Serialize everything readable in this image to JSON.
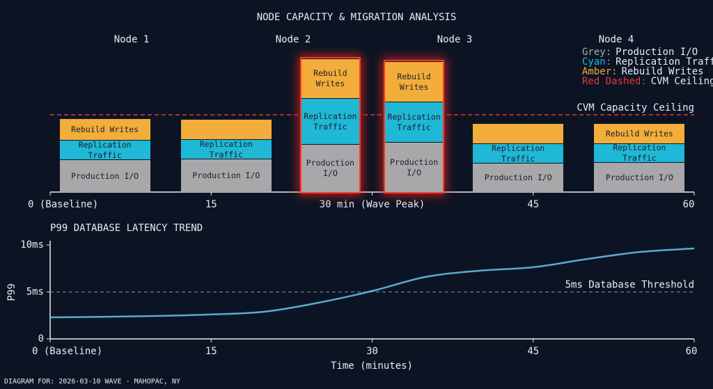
{
  "chart_data": [
    {
      "type": "bar",
      "stacked": true,
      "title": "NODE CAPACITY & MIGRATION ANALYSIS",
      "nodes": [
        "Node 1",
        "Node 2",
        "Node 3",
        "Node 4"
      ],
      "x": [
        5.1,
        16.4,
        26.1,
        33.9,
        43.6,
        54.9
      ],
      "xlim": [
        0,
        60
      ],
      "xticks": [
        {
          "value": 0,
          "label": "0 (Baseline)"
        },
        15,
        {
          "value": 30,
          "label": "30 min (Wave Peak)"
        },
        45,
        60
      ],
      "ylim": [
        0,
        200
      ],
      "highlight": [
        false,
        false,
        true,
        true,
        false,
        false
      ],
      "series": [
        {
          "name": "Production I/O",
          "legend_prefix": "Grey:",
          "color": "#a8a8aa",
          "values": [
            47,
            48,
            69,
            72,
            42,
            43
          ],
          "labels": [
            "Production I/O",
            "Production I/O",
            "Production I/O",
            "Production I/O",
            "Production I/O",
            "Production I/O"
          ]
        },
        {
          "name": "Replication Traffic",
          "legend_prefix": "Cyan:",
          "color": "#1fb8d6",
          "values": [
            28,
            28,
            66,
            58,
            28,
            27
          ],
          "labels": [
            "Replication Traffic",
            "Replication Traffic",
            "Replication Traffic",
            "Replication Traffic",
            "Replication Traffic",
            "Replication Traffic"
          ]
        },
        {
          "name": "Rebuild Writes",
          "legend_prefix": "Amber:",
          "color": "#f2ad3a",
          "values": [
            31,
            29,
            57,
            58,
            29,
            29
          ],
          "labels": [
            "Rebuild Writes",
            null,
            "Rebuild Writes",
            "Rebuild Writes",
            null,
            "Rebuild Writes"
          ]
        }
      ],
      "ceiling": {
        "value": 111,
        "label": "CVM Capacity Ceiling",
        "legend_prefix": "Red Dashed:",
        "legend_label": "CVM Ceiling",
        "color": "#e0383a"
      }
    },
    {
      "type": "line",
      "title": "P99 DATABASE LATENCY TREND",
      "x_label": "Time (minutes)",
      "y_label": "P99",
      "x": [
        0,
        5,
        10,
        15,
        20,
        25,
        30,
        35,
        40,
        45,
        50,
        55,
        60
      ],
      "values": [
        2.3,
        2.35,
        2.44,
        2.6,
        2.9,
        3.85,
        5.1,
        6.6,
        7.26,
        7.63,
        8.5,
        9.26,
        9.63
      ],
      "color": "#5ea9cf",
      "xlim": [
        0,
        60
      ],
      "xticks": [
        {
          "value": 0,
          "label": "0 (Baseline)"
        },
        15,
        30,
        45,
        60
      ],
      "ylim": [
        0,
        10
      ],
      "yticks": [
        0,
        {
          "value": 5,
          "label": "5ms"
        },
        {
          "value": 10,
          "label": "10ms"
        }
      ],
      "threshold": {
        "value": 5,
        "label": "5ms Database Threshold"
      }
    }
  ],
  "footer": "DIAGRAM FOR: 2026-03-10 WAVE - MAHOPAC, NY"
}
